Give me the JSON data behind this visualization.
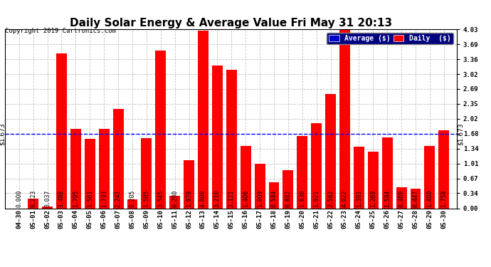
{
  "title": "Daily Solar Energy & Average Value Fri May 31 20:13",
  "copyright": "Copyright 2019 Cartronics.com",
  "categories": [
    "04-30",
    "05-01",
    "05-02",
    "05-03",
    "05-04",
    "05-05",
    "05-06",
    "05-07",
    "05-08",
    "05-09",
    "05-10",
    "05-11",
    "05-12",
    "05-13",
    "05-14",
    "05-15",
    "05-16",
    "05-17",
    "05-18",
    "05-19",
    "05-20",
    "05-21",
    "05-22",
    "05-23",
    "05-24",
    "05-25",
    "05-26",
    "05-27",
    "05-28",
    "05-29",
    "05-30"
  ],
  "values": [
    0.0,
    0.223,
    0.037,
    3.488,
    1.795,
    1.561,
    1.793,
    2.241,
    0.205,
    1.585,
    3.545,
    0.28,
    1.078,
    4.0,
    3.21,
    3.121,
    1.406,
    1.009,
    0.584,
    0.862,
    1.63,
    1.921,
    2.582,
    4.022,
    1.391,
    1.269,
    1.594,
    0.469,
    0.447,
    1.4,
    1.758
  ],
  "average": 1.673,
  "bar_color": "#FF0000",
  "avg_line_color": "#0000FF",
  "background_color": "#FFFFFF",
  "grid_color": "#BBBBBB",
  "title_fontsize": 11,
  "tick_fontsize": 6.5,
  "label_fontsize": 5.8,
  "ytick_labels": [
    "0.00",
    "0.34",
    "0.67",
    "1.01",
    "1.34",
    "1.68",
    "2.02",
    "2.35",
    "2.69",
    "3.02",
    "3.36",
    "3.69",
    "4.03"
  ],
  "ytick_values": [
    0.0,
    0.34,
    0.67,
    1.01,
    1.34,
    1.68,
    2.02,
    2.35,
    2.69,
    3.02,
    3.36,
    3.69,
    4.03
  ],
  "ylim": [
    0,
    4.03
  ],
  "legend_bg_color": "#000080",
  "legend_avg_color": "#0000CD",
  "legend_daily_color": "#FF0000",
  "avg_label_left": "$1.673",
  "avg_label_right": "$1.673"
}
